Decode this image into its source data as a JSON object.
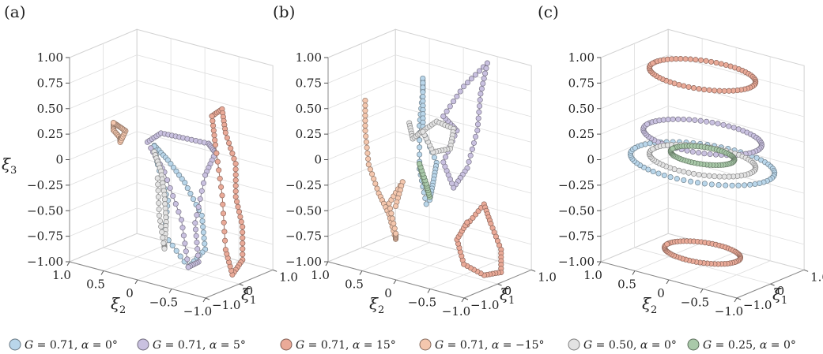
{
  "chart_data": [
    {
      "panel_label": "(a)",
      "type": "scatter",
      "xlabel": "ξ2",
      "ylabel": "ξ1",
      "zlabel": "ξ3",
      "x_ticks": [
        "1.0",
        "0.5",
        "0",
        "−0.5",
        "−1.0"
      ],
      "y_ticks": [
        "−1.0",
        "0",
        "1.0"
      ],
      "z_ticks": [
        "1.00",
        "0.75",
        "0.50",
        "0.25",
        "0",
        "−0.25",
        "−0.50",
        "−0.75",
        "−1.00"
      ],
      "xlim": [
        -1,
        1
      ],
      "ylim": [
        -1,
        1
      ],
      "zlim": [
        -1,
        1
      ],
      "grid": true,
      "series": [
        {
          "ref": "s1",
          "kind": "trajectory",
          "points": [
            [
              0.15,
              -0.2,
              0.18
            ],
            [
              0.0,
              -0.1,
              0.05
            ],
            [
              -0.2,
              0.0,
              -0.15
            ],
            [
              -0.4,
              0.1,
              -0.45
            ],
            [
              -0.5,
              0.0,
              -0.75
            ],
            [
              -0.4,
              -0.3,
              -0.9
            ],
            [
              -0.15,
              -0.5,
              -0.6
            ],
            [
              -0.1,
              -0.3,
              -0.3
            ],
            [
              0.1,
              -0.2,
              0.0
            ],
            [
              0.2,
              -0.1,
              0.15
            ]
          ]
        },
        {
          "ref": "s2",
          "kind": "trajectory",
          "points": [
            [
              0.35,
              0.0,
              0.15
            ],
            [
              0.2,
              0.1,
              0.25
            ],
            [
              -0.1,
              0.15,
              0.25
            ],
            [
              -0.45,
              0.2,
              0.25
            ],
            [
              -0.6,
              0.1,
              0.2
            ],
            [
              -0.55,
              -0.1,
              0.0
            ],
            [
              -0.5,
              -0.3,
              -0.45
            ],
            [
              -0.6,
              -0.4,
              -0.8
            ],
            [
              -0.4,
              -0.3,
              -0.9
            ],
            [
              -0.2,
              -0.1,
              -0.5
            ],
            [
              0.1,
              0.0,
              -0.1
            ],
            [
              0.3,
              0.0,
              0.1
            ]
          ]
        },
        {
          "ref": "s3",
          "kind": "trajectory",
          "points": [
            [
              -0.55,
              0.1,
              0.55
            ],
            [
              -0.6,
              0.3,
              0.6
            ],
            [
              -0.7,
              0.2,
              0.4
            ],
            [
              -0.8,
              0.3,
              0.1
            ],
            [
              -0.85,
              0.2,
              -0.2
            ],
            [
              -0.9,
              0.3,
              -0.5
            ],
            [
              -0.95,
              0.2,
              -0.8
            ],
            [
              -0.85,
              0.1,
              -0.95
            ],
            [
              -0.8,
              0.0,
              -0.7
            ],
            [
              -0.7,
              0.1,
              -0.2
            ],
            [
              -0.65,
              0.0,
              0.3
            ],
            [
              -0.55,
              0.1,
              0.55
            ]
          ]
        },
        {
          "ref": "s4",
          "kind": "trajectory",
          "points": [
            [
              0.85,
              0.0,
              0.25
            ],
            [
              0.8,
              -0.1,
              0.2
            ],
            [
              0.75,
              0.0,
              0.12
            ],
            [
              0.7,
              -0.1,
              0.1
            ],
            [
              0.72,
              0.1,
              0.18
            ],
            [
              0.8,
              0.05,
              0.22
            ],
            [
              0.85,
              0.0,
              0.25
            ]
          ]
        },
        {
          "ref": "s5",
          "kind": "trajectory",
          "points": [
            [
              0.3,
              0.1,
              0.05
            ],
            [
              0.15,
              0.0,
              -0.1
            ],
            [
              0.05,
              -0.1,
              -0.3
            ],
            [
              0.0,
              -0.15,
              -0.55
            ],
            [
              0.05,
              -0.1,
              -0.8
            ],
            [
              0.1,
              0.0,
              -0.85
            ],
            [
              0.2,
              0.05,
              -0.55
            ],
            [
              0.25,
              0.1,
              -0.2
            ]
          ]
        }
      ]
    },
    {
      "panel_label": "(b)",
      "type": "scatter",
      "xlabel": "ξ2",
      "ylabel": "ξ1",
      "zlabel": "",
      "x_ticks": [
        "1.0",
        "0.5",
        "0",
        "−0.5",
        "−1.0"
      ],
      "y_ticks": [
        "−1.0",
        "0",
        "1.0"
      ],
      "z_ticks": [
        "1.00",
        "0.75",
        "0.50",
        "0.25",
        "0",
        "−0.25",
        "−0.50",
        "−0.75",
        "−1.00"
      ],
      "xlim": [
        -1,
        1
      ],
      "ylim": [
        -1,
        1
      ],
      "zlim": [
        -1,
        1
      ],
      "grid": true,
      "series": [
        {
          "ref": "s1",
          "kind": "trajectory",
          "points": [
            [
              0.15,
              0.2,
              -0.45
            ],
            [
              0.2,
              0.1,
              -0.1
            ],
            [
              0.25,
              0.2,
              0.3
            ],
            [
              0.3,
              0.4,
              0.6
            ],
            [
              0.25,
              0.3,
              0.75
            ],
            [
              0.1,
              0.0,
              0.55
            ],
            [
              0.0,
              -0.2,
              0.35
            ],
            [
              -0.15,
              -0.1,
              0.05
            ],
            [
              0.0,
              0.1,
              -0.2
            ],
            [
              0.1,
              0.2,
              -0.4
            ]
          ]
        },
        {
          "ref": "s2",
          "kind": "trajectory",
          "points": [
            [
              -0.2,
              0.0,
              0.5
            ],
            [
              -0.4,
              0.2,
              0.8
            ],
            [
              -0.55,
              0.6,
              1.0
            ],
            [
              -0.6,
              0.3,
              0.75
            ],
            [
              -0.7,
              0.0,
              0.45
            ],
            [
              -0.65,
              -0.2,
              0.1
            ],
            [
              -0.4,
              -0.1,
              -0.15
            ],
            [
              -0.2,
              0.0,
              0.05
            ],
            [
              -0.3,
              0.2,
              0.35
            ],
            [
              -0.2,
              0.0,
              0.5
            ]
          ]
        },
        {
          "ref": "s3",
          "kind": "trajectory",
          "points": [
            [
              -0.55,
              0.0,
              -0.5
            ],
            [
              -0.7,
              0.2,
              -0.3
            ],
            [
              -0.85,
              0.1,
              -0.45
            ],
            [
              -0.95,
              0.2,
              -0.7
            ],
            [
              -1.0,
              0.1,
              -0.9
            ],
            [
              -0.8,
              0.0,
              -0.95
            ],
            [
              -0.6,
              -0.2,
              -0.85
            ],
            [
              -0.45,
              -0.1,
              -0.65
            ],
            [
              -0.5,
              0.1,
              -0.5
            ]
          ]
        },
        {
          "ref": "s4",
          "kind": "trajectory",
          "points": [
            [
              0.95,
              0.0,
              0.45
            ],
            [
              0.85,
              -0.2,
              0.2
            ],
            [
              0.75,
              -0.3,
              -0.1
            ],
            [
              0.7,
              -0.1,
              -0.4
            ],
            [
              0.6,
              0.0,
              -0.6
            ],
            [
              0.55,
              0.1,
              -0.85
            ],
            [
              0.45,
              -0.1,
              -0.75
            ],
            [
              0.5,
              -0.2,
              -0.45
            ],
            [
              0.4,
              0.0,
              -0.25
            ],
            [
              0.6,
              0.2,
              -0.55
            ]
          ]
        },
        {
          "ref": "s5",
          "kind": "trajectory",
          "points": [
            [
              0.4,
              0.2,
              0.3
            ],
            [
              0.25,
              0.0,
              0.2
            ],
            [
              0.0,
              -0.2,
              0.35
            ],
            [
              -0.25,
              -0.3,
              0.5
            ],
            [
              -0.45,
              -0.2,
              0.45
            ],
            [
              -0.3,
              0.0,
              0.2
            ],
            [
              0.0,
              0.1,
              0.1
            ],
            [
              0.2,
              0.2,
              0.25
            ]
          ]
        },
        {
          "ref": "s6",
          "kind": "trajectory",
          "points": [
            [
              0.2,
              0.1,
              -0.05
            ],
            [
              0.1,
              0.0,
              -0.15
            ],
            [
              0.05,
              0.1,
              -0.35
            ],
            [
              0.15,
              0.2,
              -0.25
            ],
            [
              0.2,
              0.1,
              -0.05
            ]
          ]
        }
      ]
    },
    {
      "panel_label": "(c)",
      "type": "scatter",
      "xlabel": "ξ2",
      "ylabel": "ξ1",
      "zlabel": "",
      "x_ticks": [
        "1.0",
        "0.5",
        "0",
        "−0.5",
        "−1.0"
      ],
      "y_ticks": [
        "−1.0",
        "0",
        "1.0"
      ],
      "z_ticks": [
        "1.00",
        "0.75",
        "0.50",
        "0.25",
        "0",
        "−0.25",
        "−0.50",
        "−0.75",
        "−1.00"
      ],
      "xlim": [
        -1,
        1
      ],
      "ylim": [
        -1,
        1
      ],
      "zlim": [
        -1,
        1
      ],
      "grid": true,
      "series": [
        {
          "ref": "s1",
          "kind": "ring",
          "z": 0.0,
          "r": 0.95
        },
        {
          "ref": "s2",
          "kind": "ring",
          "z": 0.26,
          "r": 0.78
        },
        {
          "ref": "s3",
          "kind": "ring",
          "z": 0.87,
          "r": 0.7
        },
        {
          "ref": "s3",
          "kind": "ring",
          "z": -0.87,
          "r": 0.5
        },
        {
          "ref": "s5",
          "kind": "ring",
          "z": 0.03,
          "r": 0.7
        },
        {
          "ref": "s6",
          "kind": "ring",
          "z": 0.08,
          "r": 0.42
        }
      ]
    }
  ],
  "legend": [
    {
      "id": "s1",
      "label": "G = 0.71, α = 0°",
      "color": "#b9d6ea"
    },
    {
      "id": "s2",
      "label": "G = 0.71, α = 5°",
      "color": "#c9c1e0"
    },
    {
      "id": "s3",
      "label": "G = 0.71, α = 15°",
      "color": "#eaaa98"
    },
    {
      "id": "s4",
      "label": "G = 0.71, α = −15°",
      "color": "#f4c7ae"
    },
    {
      "id": "s5",
      "label": "G = 0.50, α = 0°",
      "color": "#e3e3e3"
    },
    {
      "id": "s6",
      "label": "G = 0.25, α = 0°",
      "color": "#a9c9a9"
    }
  ]
}
